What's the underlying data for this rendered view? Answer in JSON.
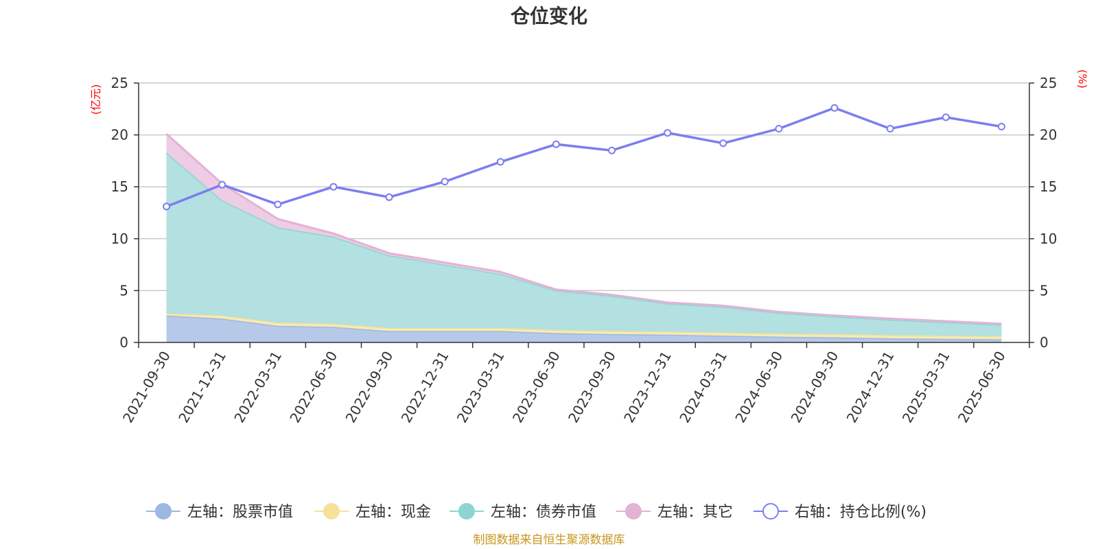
{
  "chart_data": {
    "type": "area",
    "title": "仓位变化",
    "categories": [
      "2021-09-30",
      "2021-12-31",
      "2022-03-31",
      "2022-06-30",
      "2022-09-30",
      "2022-12-31",
      "2023-03-31",
      "2023-06-30",
      "2023-09-30",
      "2023-12-31",
      "2024-03-31",
      "2024-06-30",
      "2024-09-30",
      "2024-12-31",
      "2025-03-31",
      "2025-06-30"
    ],
    "left_axis": {
      "unit": "(亿元)",
      "ylim": [
        0,
        25
      ],
      "ticks": [
        "0",
        "5",
        "10",
        "15",
        "20",
        "25"
      ]
    },
    "right_axis": {
      "unit": "(%)",
      "ylim": [
        0,
        25
      ],
      "ticks": [
        "0",
        "5",
        "10",
        "15",
        "20",
        "25"
      ]
    },
    "grid": true,
    "legend_position": "bottom",
    "stacked_series": [
      {
        "name": "左轴：股票市值",
        "color": "#9cb7e0",
        "fill": "#b7c9e8",
        "values": [
          2.6,
          2.3,
          1.6,
          1.5,
          1.1,
          1.1,
          1.1,
          0.9,
          0.8,
          0.75,
          0.65,
          0.55,
          0.5,
          0.4,
          0.35,
          0.3
        ]
      },
      {
        "name": "左轴：现金",
        "color": "#f5e19b",
        "fill": "#f7eab2",
        "values": [
          0.2,
          0.3,
          0.3,
          0.3,
          0.3,
          0.3,
          0.3,
          0.3,
          0.3,
          0.3,
          0.3,
          0.3,
          0.3,
          0.3,
          0.3,
          0.3
        ]
      },
      {
        "name": "左轴：债券市值",
        "color": "#8dd5d3",
        "fill": "#b3e0e0",
        "values": [
          15.5,
          11.1,
          9.2,
          8.4,
          7.0,
          6.1,
          5.2,
          3.8,
          3.4,
          2.7,
          2.5,
          2.0,
          1.7,
          1.5,
          1.3,
          1.1
        ]
      },
      {
        "name": "左轴：其它",
        "color": "#e3b2d6",
        "fill": "#eecce3",
        "values": [
          1.8,
          1.6,
          0.8,
          0.3,
          0.2,
          0.2,
          0.2,
          0.1,
          0.1,
          0.1,
          0.1,
          0.1,
          0.1,
          0.1,
          0.1,
          0.1
        ]
      }
    ],
    "line_series": {
      "name": "右轴：持仓比例(%)",
      "color": "#7b7ef0",
      "values": [
        13.1,
        15.2,
        13.3,
        15.0,
        14.0,
        15.5,
        17.4,
        19.1,
        18.5,
        20.2,
        19.2,
        20.6,
        22.6,
        20.6,
        21.7,
        20.8
      ]
    },
    "source": "制图数据来自恒生聚源数据库"
  }
}
